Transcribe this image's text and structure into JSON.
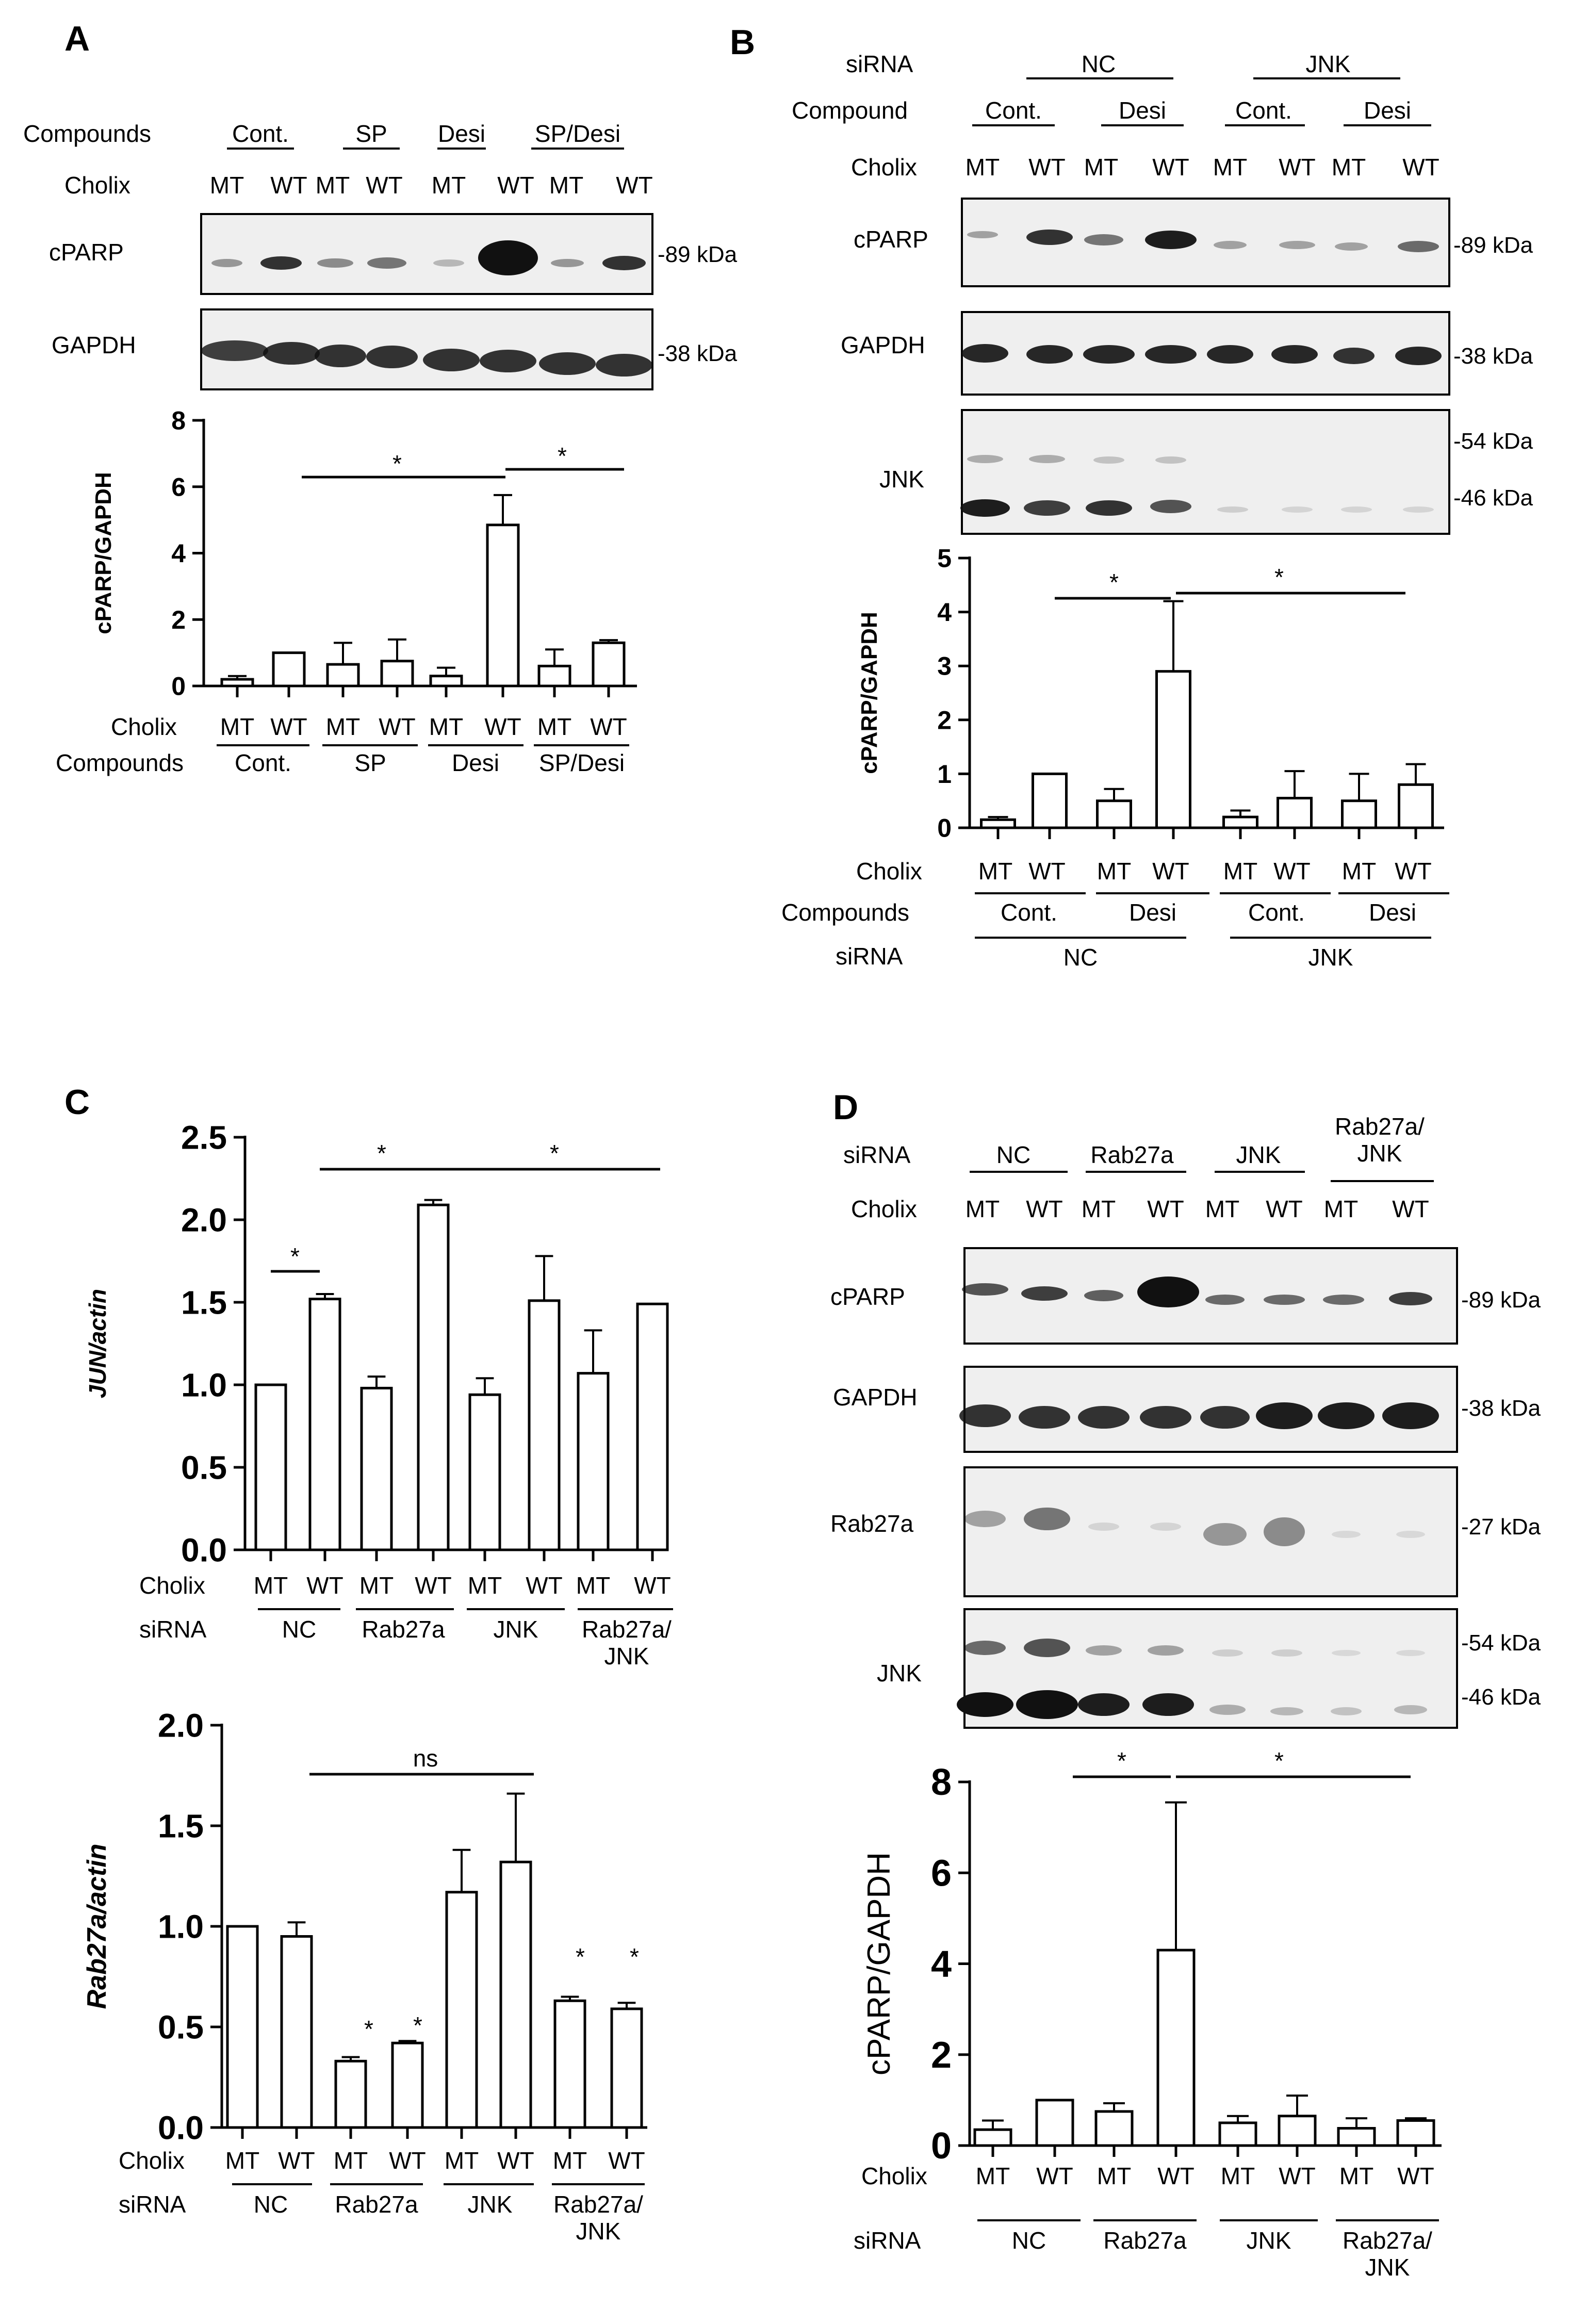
{
  "panels": {
    "A": "A",
    "B": "B",
    "C": "C",
    "D": "D"
  },
  "colors": {
    "band": "#111111",
    "bar_fill": "#ffffff",
    "stroke": "#000000",
    "blot_bg": "#efefef"
  },
  "panelA": {
    "header": {
      "compounds_label": "Compounds",
      "cholix_label": "Cholix",
      "groups": [
        "Cont.",
        "SP",
        "Desi",
        "SP/Desi"
      ],
      "cholix": [
        "MT",
        "WT",
        "MT",
        "WT",
        "MT",
        "WT",
        "MT",
        "WT"
      ]
    },
    "blots": [
      {
        "name": "cPARP",
        "kda": [
          "89 kDa"
        ]
      },
      {
        "name": "GAPDH",
        "kda": [
          "38 kDa"
        ]
      }
    ],
    "footer": {
      "cholix_label": "Cholix",
      "compounds_label": "Compounds",
      "cholix": [
        "MT",
        "WT",
        "MT",
        "WT",
        "MT",
        "WT",
        "MT",
        "WT"
      ],
      "groups": [
        "Cont.",
        "SP",
        "Desi",
        "SP/Desi"
      ]
    },
    "sig": [
      "*",
      "*"
    ]
  },
  "panelB": {
    "header": {
      "sirna_label": "siRNA",
      "compound_label": "Compound",
      "cholix_label": "Cholix",
      "sirna_groups": [
        "NC",
        "JNK"
      ],
      "compound_groups": [
        "Cont.",
        "Desi",
        "Cont.",
        "Desi"
      ],
      "cholix": [
        "MT",
        "WT",
        "MT",
        "WT",
        "MT",
        "WT",
        "MT",
        "WT"
      ]
    },
    "blots": [
      {
        "name": "cPARP",
        "kda": [
          "89 kDa"
        ]
      },
      {
        "name": "GAPDH",
        "kda": [
          "38 kDa"
        ]
      },
      {
        "name": "JNK",
        "kda": [
          "54 kDa",
          "46 kDa"
        ]
      }
    ],
    "footer": {
      "cholix_label": "Cholix",
      "compounds_label": "Compounds",
      "sirna_label": "siRNA",
      "cholix": [
        "MT",
        "WT",
        "MT",
        "WT",
        "MT",
        "WT",
        "MT",
        "WT"
      ],
      "compound_groups": [
        "Cont.",
        "Desi",
        "Cont.",
        "Desi"
      ],
      "sirna_groups": [
        "NC",
        "JNK"
      ]
    },
    "sig": [
      "*",
      "*"
    ]
  },
  "panelC": {
    "footer": {
      "cholix_label": "Cholix",
      "sirna_label": "siRNA",
      "cholix": [
        "MT",
        "WT",
        "MT",
        "WT",
        "MT",
        "WT",
        "MT",
        "WT"
      ],
      "sirna_groups": [
        "NC",
        "Rab27a",
        "JNK",
        "Rab27a/\nJNK"
      ]
    },
    "sig_top": [
      "*",
      "*",
      "*"
    ],
    "sig_bottom": [
      "ns",
      "*",
      "*",
      "*",
      "*"
    ]
  },
  "panelD": {
    "header": {
      "sirna_label": "siRNA",
      "cholix_label": "Cholix",
      "sirna_groups": [
        "NC",
        "Rab27a",
        "JNK",
        "Rab27a/\nJNK"
      ],
      "cholix": [
        "MT",
        "WT",
        "MT",
        "WT",
        "MT",
        "WT",
        "MT",
        "WT"
      ]
    },
    "blots": [
      {
        "name": "cPARP",
        "kda": [
          "89 kDa"
        ]
      },
      {
        "name": "GAPDH",
        "kda": [
          "38 kDa"
        ]
      },
      {
        "name": "Rab27a",
        "kda": [
          "27 kDa"
        ]
      },
      {
        "name": "JNK",
        "kda": [
          "54 kDa",
          "46 kDa"
        ]
      }
    ],
    "footer": {
      "cholix_label": "Cholix",
      "sirna_label": "siRNA",
      "cholix": [
        "MT",
        "WT",
        "MT",
        "WT",
        "MT",
        "WT",
        "MT",
        "WT"
      ],
      "sirna_groups": [
        "NC",
        "Rab27a",
        "JNK",
        "Rab27a/\nJNK"
      ]
    },
    "sig": [
      "*",
      "*"
    ]
  },
  "chart_data": [
    {
      "id": "A",
      "type": "bar",
      "title": "",
      "ylabel": "cPARP/GAPDH",
      "ylim": [
        0,
        8
      ],
      "yticks": [
        0,
        2,
        4,
        6,
        8
      ],
      "categories": [
        "Cont. MT",
        "Cont. WT",
        "SP MT",
        "SP WT",
        "Desi MT",
        "Desi WT",
        "SP/Desi MT",
        "SP/Desi WT"
      ],
      "values": [
        0.2,
        1.0,
        0.65,
        0.75,
        0.3,
        4.85,
        0.6,
        1.3
      ],
      "errors": [
        0.1,
        0.0,
        0.65,
        0.65,
        0.25,
        0.9,
        0.5,
        0.08
      ]
    },
    {
      "id": "B",
      "type": "bar",
      "title": "",
      "ylabel": "cPARP/GAPDH",
      "ylim": [
        0,
        5
      ],
      "yticks": [
        0,
        1,
        2,
        3,
        4,
        5
      ],
      "categories": [
        "NC Cont. MT",
        "NC Cont. WT",
        "NC Desi MT",
        "NC Desi WT",
        "JNK Cont. MT",
        "JNK Cont. WT",
        "JNK Desi MT",
        "JNK Desi WT"
      ],
      "values": [
        0.15,
        1.0,
        0.5,
        2.9,
        0.2,
        0.55,
        0.5,
        0.8
      ],
      "errors": [
        0.05,
        0.0,
        0.22,
        1.3,
        0.12,
        0.5,
        0.5,
        0.38
      ]
    },
    {
      "id": "C1",
      "type": "bar",
      "title": "",
      "ylabel": "JUN/actin",
      "ylim": [
        0,
        2.5
      ],
      "yticks": [
        0.0,
        0.5,
        1.0,
        1.5,
        2.0,
        2.5
      ],
      "tick_labels": [
        "0.0",
        "0.5",
        "1.0",
        "1.5",
        "2.0",
        "2.5"
      ],
      "categories": [
        "NC MT",
        "NC WT",
        "Rab27a MT",
        "Rab27a WT",
        "JNK MT",
        "JNK WT",
        "Rab27a/JNK MT",
        "Rab27a/JNK WT"
      ],
      "values": [
        1.0,
        1.52,
        0.98,
        2.09,
        0.94,
        1.51,
        1.07,
        1.49
      ],
      "errors": [
        0.0,
        0.03,
        0.07,
        0.03,
        0.1,
        0.27,
        0.26,
        0.0
      ]
    },
    {
      "id": "C2",
      "type": "bar",
      "title": "",
      "ylabel": "Rab27a/actin",
      "ylim": [
        0,
        2.0
      ],
      "yticks": [
        0.0,
        0.5,
        1.0,
        1.5,
        2.0
      ],
      "tick_labels": [
        "0.0",
        "0.5",
        "1.0",
        "1.5",
        "2.0"
      ],
      "categories": [
        "NC MT",
        "NC WT",
        "Rab27a MT",
        "Rab27a WT",
        "JNK MT",
        "JNK WT",
        "Rab27a/JNK MT",
        "Rab27a/JNK WT"
      ],
      "values": [
        1.0,
        0.95,
        0.33,
        0.42,
        1.17,
        1.32,
        0.63,
        0.59
      ],
      "errors": [
        0.0,
        0.07,
        0.02,
        0.01,
        0.21,
        0.34,
        0.02,
        0.03
      ]
    },
    {
      "id": "D",
      "type": "bar",
      "title": "",
      "ylabel": "cPARP/GAPDH",
      "ylim": [
        0,
        8
      ],
      "yticks": [
        0,
        2,
        4,
        6,
        8
      ],
      "categories": [
        "NC MT",
        "NC WT",
        "Rab27a MT",
        "Rab27a WT",
        "JNK MT",
        "JNK WT",
        "Rab27a/JNK MT",
        "Rab27a/JNK WT"
      ],
      "values": [
        0.35,
        1.0,
        0.75,
        4.3,
        0.5,
        0.65,
        0.38,
        0.55
      ],
      "errors": [
        0.2,
        0.0,
        0.18,
        3.25,
        0.15,
        0.45,
        0.22,
        0.05
      ]
    }
  ]
}
